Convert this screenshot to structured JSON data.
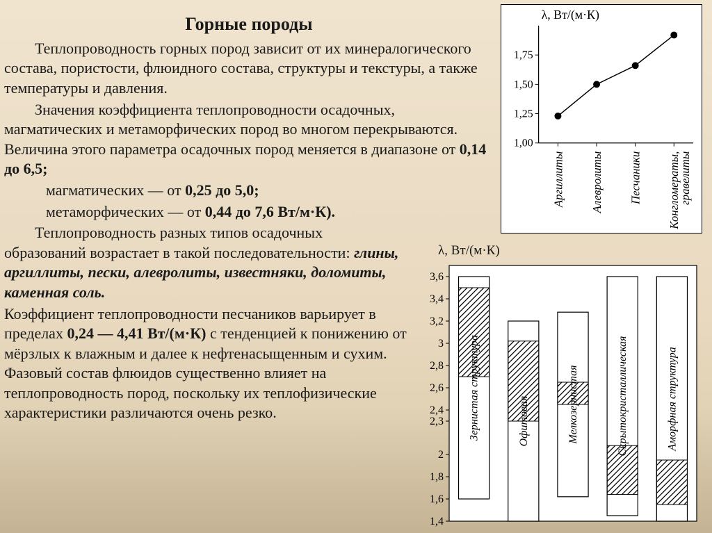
{
  "title": "Горные породы",
  "p1": "Теплопроводность горных пород зависит от их минералогического состава, пористости, флюидного состава, структуры и текстуры, а также температуры и давления.",
  "p2a": "Значения коэффициента теплопроводности осадочных, магматических и метаморфических пород во многом перекрываются. Величина этого параметра осадочных пород меняется в диапазоне от ",
  "p2b": "0,14 до 6,5;",
  "p3a": "магматических — от ",
  "p3b": "0,25 до 5,0;",
  "p4a": "метаморфических — от ",
  "p4b": "0,44 до 7,6 Вт/м·К).",
  "p5a": "Теплопроводность разных типов осадочных образований возрастает в такой последовательности: ",
  "p5b": "глины, аргиллиты, пески, алевролиты, известняки, доломиты, каменная соль.",
  "p6a": "Коэффициент теплопроводности песчаников варьирует в пределах ",
  "p6b": "0,24 — 4,41 Вт/(м·К)",
  "p6c": " с тенденцией к понижению от мёрзлых к влажным и далее к нефтенасыщенным и сухим. Фазовый состав флюидов существенно влияет на теплопроводность пород, поскольку их теплофизические характеристики различаются очень резко.",
  "chart1": {
    "type": "scatter-line",
    "ylabel": "λ, Вт/(м·К)",
    "yticks": [
      1.0,
      1.25,
      1.5,
      1.75
    ],
    "ylim": [
      1.0,
      2.0
    ],
    "categories": [
      "Аргиллиты",
      "Алевролиты",
      "Песчаники",
      "Конгломераты,\nгравелиты"
    ],
    "values": [
      1.23,
      1.5,
      1.66,
      1.92
    ],
    "marker": "circle",
    "marker_size": 5,
    "line_color": "#000000",
    "background": "#ffffff"
  },
  "chart2": {
    "type": "range-bar",
    "ylabel": "λ, Вт/(м·К)",
    "yticks": [
      1.4,
      1.6,
      1.8,
      2.0,
      2.3,
      2.4,
      2.6,
      2.8,
      3.0,
      3.2,
      3.4,
      3.6
    ],
    "ylim": [
      1.4,
      3.7
    ],
    "bar_width": 0.62,
    "bars": [
      {
        "label": "Зернистая структура",
        "outline": [
          1.6,
          3.6
        ],
        "hatch": [
          2.7,
          3.5
        ]
      },
      {
        "label": "Офитовая",
        "outline": [
          1.4,
          3.2
        ],
        "hatch": [
          2.3,
          3.02
        ]
      },
      {
        "label": "Мелкозернистая",
        "outline": [
          1.62,
          3.28
        ],
        "hatch": [
          2.45,
          2.65
        ]
      },
      {
        "label": "Скрытокристаллическая",
        "outline": [
          1.45,
          3.6
        ],
        "hatch": [
          1.64,
          2.08
        ]
      },
      {
        "label": "Аморфная структура",
        "outline": [
          1.4,
          3.6
        ],
        "hatch": [
          1.55,
          1.95
        ]
      }
    ],
    "hatch_stroke": "#000000",
    "outline_stroke": "#000000",
    "background": "#ffffff"
  }
}
